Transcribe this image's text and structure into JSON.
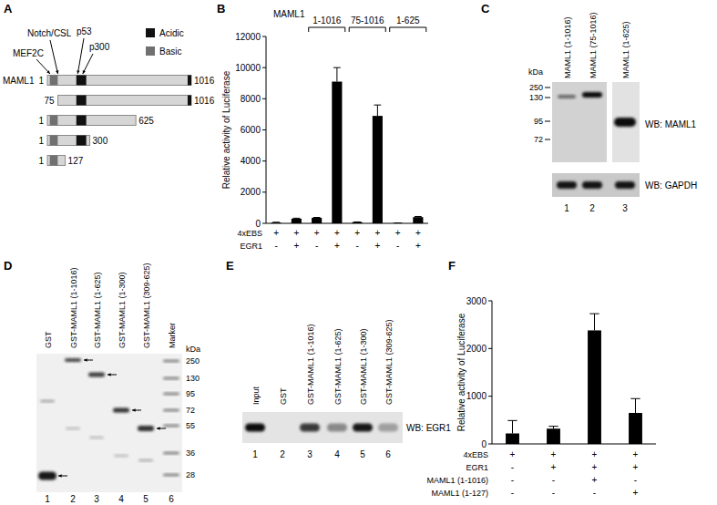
{
  "panel_labels": [
    "A",
    "B",
    "C",
    "D",
    "E",
    "F"
  ],
  "diagram": {
    "protein": "MAML1",
    "total_length": 1016,
    "legend": [
      {
        "label": "Acidic",
        "color": "#111111"
      },
      {
        "label": "Basic",
        "color": "#707070"
      }
    ],
    "domains": [
      {
        "kind": "Basic",
        "start": 18,
        "end": 74
      },
      {
        "kind": "Acidic",
        "start": 205,
        "end": 275
      },
      {
        "kind": "Acidic",
        "start": 990,
        "end": 1016
      }
    ],
    "callouts": [
      {
        "label": "MEF2C",
        "at": 20
      },
      {
        "label": "Notch/CSL",
        "at": 75
      },
      {
        "label": "p53",
        "at": 215
      },
      {
        "label": "p300",
        "at": 250
      }
    ],
    "constructs": [
      {
        "start": 1,
        "end": 1016
      },
      {
        "start": 75,
        "end": 1016
      },
      {
        "start": 1,
        "end": 625
      },
      {
        "start": 1,
        "end": 300
      },
      {
        "start": 1,
        "end": 127
      }
    ]
  },
  "chart_data": [
    {
      "type": "bar",
      "y_label": "Relative activity of Luciferase",
      "header": "MAML1",
      "categories": [
        null,
        null,
        null,
        null,
        null,
        null,
        null,
        null
      ],
      "values": [
        50,
        300,
        350,
        9100,
        80,
        6900,
        20,
        400
      ],
      "errors": [
        20,
        30,
        30,
        900,
        10,
        700,
        5,
        40
      ],
      "color": "#000000",
      "ylim": [
        0,
        12000
      ],
      "yticks": [
        0,
        2000,
        4000,
        6000,
        8000,
        10000,
        12000
      ],
      "grid": false,
      "groups": [
        {
          "label": "1-1016",
          "bars": [
            2,
            3
          ]
        },
        {
          "label": "75-1016",
          "bars": [
            4,
            5
          ]
        },
        {
          "label": "1-625",
          "bars": [
            6,
            7
          ]
        }
      ],
      "conditions": [
        {
          "label": "4xEBS",
          "marks": [
            "+",
            "+",
            "+",
            "+",
            "+",
            "+",
            "+",
            "+"
          ]
        },
        {
          "label": "EGR1",
          "marks": [
            "-",
            "+",
            "-",
            "+",
            "-",
            "+",
            "-",
            "+"
          ]
        }
      ]
    },
    {
      "type": "bar",
      "y_label": "Relative activity of Luciferase",
      "categories": [
        null,
        null,
        null,
        null
      ],
      "values": [
        220,
        320,
        2380,
        650
      ],
      "errors": [
        270,
        50,
        350,
        300
      ],
      "color": "#000000",
      "ylim": [
        0,
        3000
      ],
      "yticks": [
        0,
        1000,
        2000,
        3000
      ],
      "grid": false,
      "conditions": [
        {
          "label": "4xEBS",
          "marks": [
            "+",
            "+",
            "+",
            "+"
          ]
        },
        {
          "label": "EGR1",
          "marks": [
            "-",
            "+",
            "+",
            "+"
          ]
        },
        {
          "label": "MAML1 (1-1016)",
          "marks": [
            "-",
            "-",
            "+",
            "-"
          ]
        },
        {
          "label": "MAML1 (1-127)",
          "marks": [
            "-",
            "-",
            "-",
            "+"
          ]
        }
      ]
    }
  ],
  "blot_c": {
    "lanes": [
      "MAML1 (1-1016)",
      "MAML1 (75-1016)",
      "MAML1 (1-625)"
    ],
    "lane_numbers": [
      1,
      2,
      3
    ],
    "unit": "kDa",
    "markers": [
      250,
      130,
      95,
      72
    ],
    "probes": [
      "WB: MAML1",
      "WB: GAPDH"
    ]
  },
  "gel_d": {
    "lanes": [
      "GST",
      "GST-MAML1 (1-1016)",
      "GST-MAML1 (1-625)",
      "GST-MAML1 (1-300)",
      "GST-MAML1 (309-625)",
      "Marker"
    ],
    "lane_numbers": [
      1,
      2,
      3,
      4,
      5,
      6
    ],
    "unit": "kDa",
    "markers": [
      250,
      130,
      95,
      72,
      55,
      36,
      28
    ]
  },
  "blot_e": {
    "lanes": [
      "Input",
      "GST",
      "GST-MAML1 (1-1016)",
      "GST-MAML1 (1-625)",
      "GST-MAML1 (1-300)",
      "GST-MAML1 (309-625)"
    ],
    "lane_numbers": [
      1,
      2,
      3,
      4,
      5,
      6
    ],
    "probe": "WB: EGR1"
  }
}
